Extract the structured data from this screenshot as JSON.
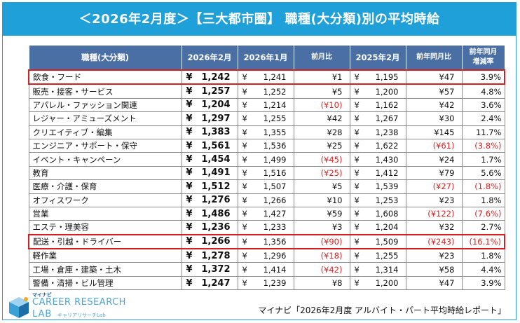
{
  "title": "＜2026年2月度＞【三大都市圏】 職種(大分類)別の平均時給",
  "headers": {
    "job": "職種(大分類)",
    "cur": "2026年2月",
    "prev_month": "2026年1月",
    "mom": "前月比",
    "prev_year": "2025年2月",
    "yoy": "前年同月比",
    "yoy_rate_line1": "前年同月",
    "yoy_rate_line2": "増減率"
  },
  "currency": "¥",
  "rows": [
    {
      "job": "飲食・フード",
      "cur": "1,242",
      "prev": "1,241",
      "mom": "¥1",
      "mom_neg": false,
      "ly": "1,195",
      "yoy": "¥47",
      "yoy_neg": false,
      "rate": "3.9%",
      "rate_neg": false,
      "highlight": true
    },
    {
      "job": "販売・接客・サービス",
      "cur": "1,257",
      "prev": "1,252",
      "mom": "¥5",
      "mom_neg": false,
      "ly": "1,200",
      "yoy": "¥57",
      "yoy_neg": false,
      "rate": "4.8%",
      "rate_neg": false,
      "highlight": false
    },
    {
      "job": "アパレル・ファッション関連",
      "cur": "1,204",
      "prev": "1,214",
      "mom": "(¥10)",
      "mom_neg": true,
      "ly": "1,162",
      "yoy": "¥42",
      "yoy_neg": false,
      "rate": "3.6%",
      "rate_neg": false,
      "highlight": false
    },
    {
      "job": "レジャー・アミューズメント",
      "cur": "1,297",
      "prev": "1,255",
      "mom": "¥42",
      "mom_neg": false,
      "ly": "1,267",
      "yoy": "¥30",
      "yoy_neg": false,
      "rate": "2.4%",
      "rate_neg": false,
      "highlight": false
    },
    {
      "job": "クリエイティブ・編集",
      "cur": "1,383",
      "prev": "1,355",
      "mom": "¥28",
      "mom_neg": false,
      "ly": "1,238",
      "yoy": "¥145",
      "yoy_neg": false,
      "rate": "11.7%",
      "rate_neg": false,
      "highlight": false
    },
    {
      "job": "エンジニア・サポート・保守",
      "cur": "1,561",
      "prev": "1,536",
      "mom": "¥25",
      "mom_neg": false,
      "ly": "1,622",
      "yoy": "(¥61)",
      "yoy_neg": true,
      "rate": "(3.8%)",
      "rate_neg": true,
      "highlight": false
    },
    {
      "job": "イベント・キャンペーン",
      "cur": "1,454",
      "prev": "1,499",
      "mom": "(¥45)",
      "mom_neg": true,
      "ly": "1,430",
      "yoy": "¥24",
      "yoy_neg": false,
      "rate": "1.7%",
      "rate_neg": false,
      "highlight": false
    },
    {
      "job": "教育",
      "cur": "1,491",
      "prev": "1,516",
      "mom": "(¥25)",
      "mom_neg": true,
      "ly": "1,412",
      "yoy": "¥79",
      "yoy_neg": false,
      "rate": "5.6%",
      "rate_neg": false,
      "highlight": false
    },
    {
      "job": "医療・介護・保育",
      "cur": "1,512",
      "prev": "1,507",
      "mom": "¥5",
      "mom_neg": false,
      "ly": "1,539",
      "yoy": "(¥27)",
      "yoy_neg": true,
      "rate": "(1.8%)",
      "rate_neg": true,
      "highlight": false
    },
    {
      "job": "オフィスワーク",
      "cur": "1,276",
      "prev": "1,266",
      "mom": "¥10",
      "mom_neg": false,
      "ly": "1,253",
      "yoy": "¥23",
      "yoy_neg": false,
      "rate": "1.8%",
      "rate_neg": false,
      "highlight": false
    },
    {
      "job": "営業",
      "cur": "1,486",
      "prev": "1,427",
      "mom": "¥59",
      "mom_neg": false,
      "ly": "1,608",
      "yoy": "(¥122)",
      "yoy_neg": true,
      "rate": "(7.6%)",
      "rate_neg": true,
      "highlight": false
    },
    {
      "job": "エステ・理美容",
      "cur": "1,236",
      "prev": "1,233",
      "mom": "¥3",
      "mom_neg": false,
      "ly": "1,204",
      "yoy": "¥32",
      "yoy_neg": false,
      "rate": "2.7%",
      "rate_neg": false,
      "highlight": false
    },
    {
      "job": "配送・引越・ドライバー",
      "cur": "1,266",
      "prev": "1,356",
      "mom": "(¥90)",
      "mom_neg": true,
      "ly": "1,509",
      "yoy": "(¥243)",
      "yoy_neg": true,
      "rate": "(16.1%)",
      "rate_neg": true,
      "highlight": true
    },
    {
      "job": "軽作業",
      "cur": "1,278",
      "prev": "1,296",
      "mom": "(¥18)",
      "mom_neg": true,
      "ly": "1,255",
      "yoy": "¥23",
      "yoy_neg": false,
      "rate": "1.8%",
      "rate_neg": false,
      "highlight": false
    },
    {
      "job": "工場・倉庫・建築・土木",
      "cur": "1,372",
      "prev": "1,414",
      "mom": "(¥42)",
      "mom_neg": true,
      "ly": "1,314",
      "yoy": "¥58",
      "yoy_neg": false,
      "rate": "4.4%",
      "rate_neg": false,
      "highlight": false
    },
    {
      "job": "警備・清掃・ビル管理",
      "cur": "1,247",
      "prev": "1,239",
      "mom": "¥8",
      "mom_neg": false,
      "ly": "1,200",
      "yoy": "¥47",
      "yoy_neg": false,
      "rate": "3.9%",
      "rate_neg": false,
      "highlight": false
    }
  ],
  "logo": {
    "top": "マイナビ",
    "main": "CAREER RESEARCH",
    "lab": "LAB",
    "sub": "キャリアリサーチLab"
  },
  "source": "マイナビ「2026年2月度 アルバイト・パート平均時給レポート」",
  "colors": {
    "banner": "#1fa0d8",
    "header": "#4a6fa5",
    "negative": "#e02020",
    "highlight": "#d42020"
  }
}
